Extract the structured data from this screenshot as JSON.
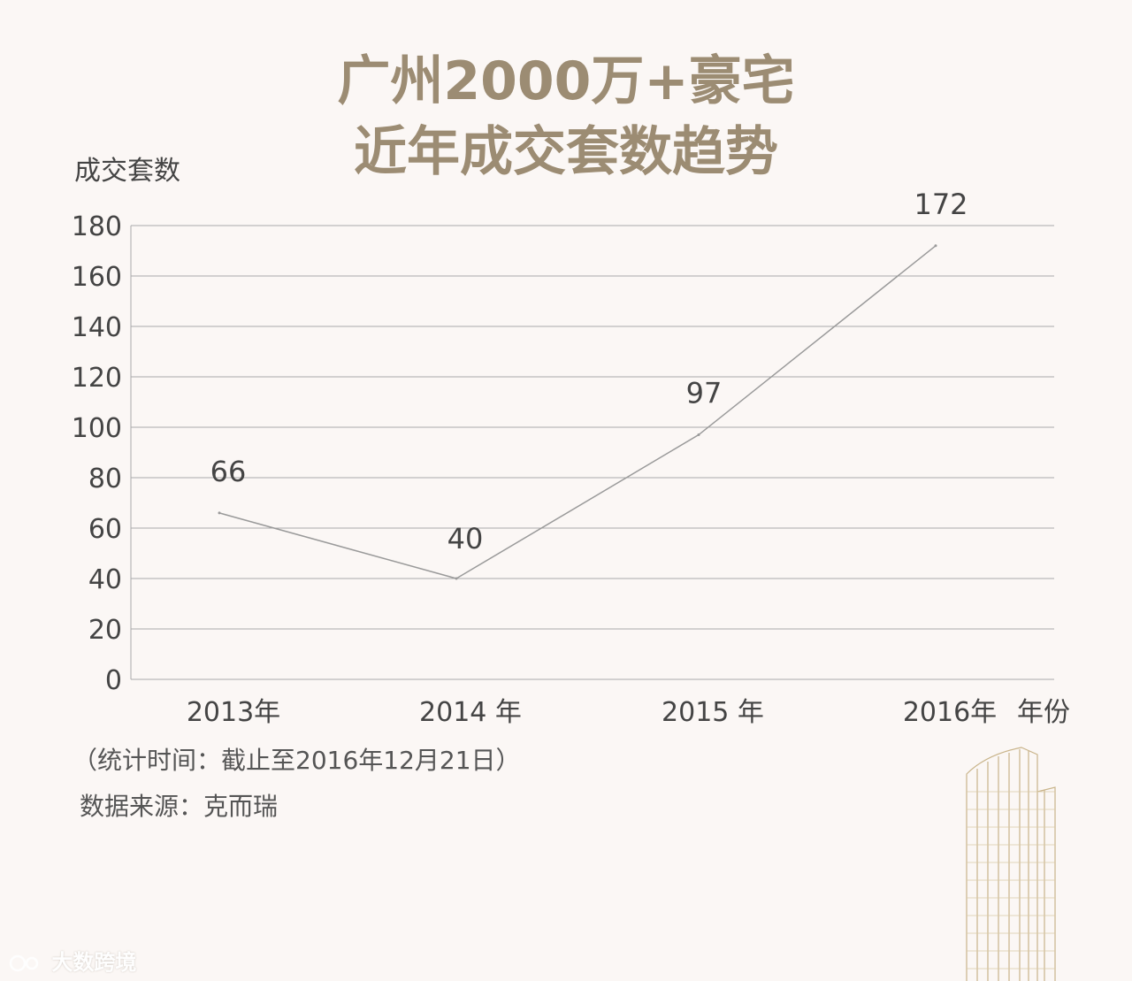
{
  "title": {
    "line1": "广州2000万+豪宅",
    "line2": "近年成交套数趋势"
  },
  "chart_data": {
    "type": "line",
    "title": "广州2000万+豪宅 近年成交套数趋势",
    "ylabel": "成交套数",
    "xlabel": "年份",
    "categories": [
      "2013年",
      "2014 年",
      "2015 年",
      "2016年"
    ],
    "series": [
      {
        "values": [
          66,
          40,
          97,
          172
        ]
      }
    ],
    "data_labels": [
      "66",
      "40",
      "97",
      "172"
    ],
    "ylim": [
      0,
      180
    ],
    "yticks": [
      "0",
      "20",
      "40",
      "60",
      "80",
      "100",
      "120",
      "140",
      "160",
      "180"
    ],
    "grid": true,
    "colors": {
      "line": "#9a9a9a",
      "grid": "#aaaaaa",
      "text": "#444444"
    }
  },
  "notes": {
    "period": "（统计时间：截止至2016年12月21日）",
    "source": "数据来源：克而瑞"
  },
  "watermark": "大数跨境",
  "icons": {
    "building": "skyscraper-illustration",
    "watermark_logo": "speech-bubble-logo"
  }
}
